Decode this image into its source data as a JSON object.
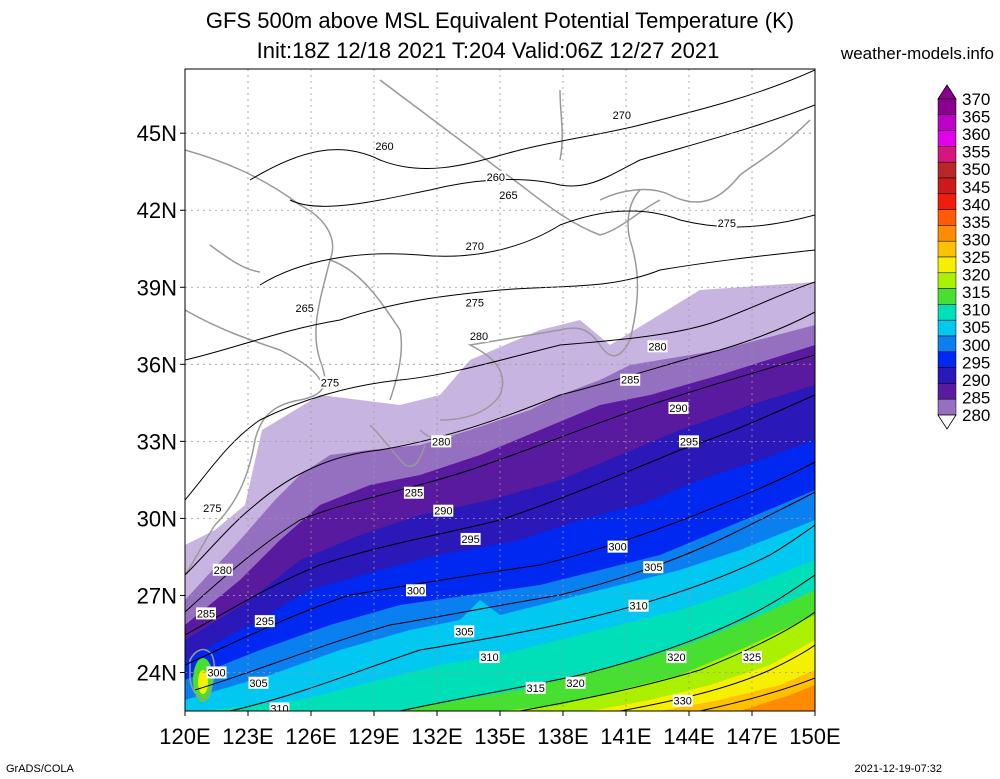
{
  "title": {
    "line1": "GFS 500m above MSL Equivalent Potential Temperature (K)",
    "line2": "Init:18Z 12/18 2021 T:204 Valid:06Z 12/27 2021",
    "site": "weather-models.info"
  },
  "footer": {
    "left": "GrADS/COLA",
    "right": "2021-12-19-07:32"
  },
  "axes": {
    "lon_labels": [
      "120E",
      "123E",
      "126E",
      "129E",
      "132E",
      "135E",
      "138E",
      "141E",
      "144E",
      "147E",
      "150E"
    ],
    "lat_labels": [
      "24N",
      "27N",
      "30N",
      "33N",
      "36N",
      "39N",
      "42N",
      "45N"
    ],
    "lon_range": [
      120,
      150
    ],
    "lat_range": [
      22.5,
      47.5
    ],
    "grid": "dotted"
  },
  "colorbar": {
    "levels": [
      "370",
      "365",
      "360",
      "355",
      "350",
      "345",
      "340",
      "335",
      "330",
      "325",
      "320",
      "315",
      "310",
      "305",
      "300",
      "295",
      "290",
      "285",
      "280"
    ],
    "colors": [
      "#8a008f",
      "#bf00c8",
      "#e400e8",
      "#d8157f",
      "#b82828",
      "#cc1a1a",
      "#f01c0c",
      "#ff5a00",
      "#ff8c00",
      "#ffc000",
      "#f5f000",
      "#aaf000",
      "#48e030",
      "#00e0b8",
      "#00c8f0",
      "#0a80f0",
      "#0028f0",
      "#2a18b8",
      "#5a1aa0",
      "#9670c0",
      "#c8b4e0"
    ]
  },
  "contour_labels": [
    {
      "lon": 129.5,
      "lat": 44.5,
      "text": "260"
    },
    {
      "lon": 134.8,
      "lat": 43.3,
      "text": "260"
    },
    {
      "lon": 135.4,
      "lat": 42.6,
      "text": "265"
    },
    {
      "lon": 125.7,
      "lat": 38.2,
      "text": "265"
    },
    {
      "lon": 140.8,
      "lat": 45.7,
      "text": "270"
    },
    {
      "lon": 133.8,
      "lat": 40.6,
      "text": "270"
    },
    {
      "lon": 145.8,
      "lat": 41.5,
      "text": "275"
    },
    {
      "lon": 133.8,
      "lat": 38.4,
      "text": "275"
    },
    {
      "lon": 126.9,
      "lat": 35.3,
      "text": "275"
    },
    {
      "lon": 121.3,
      "lat": 30.4,
      "text": "275"
    },
    {
      "lon": 134.0,
      "lat": 37.1,
      "text": "280"
    },
    {
      "lon": 142.5,
      "lat": 36.7,
      "text": "280"
    },
    {
      "lon": 132.2,
      "lat": 33.0,
      "text": "280"
    },
    {
      "lon": 121.8,
      "lat": 28.0,
      "text": "280"
    },
    {
      "lon": 141.2,
      "lat": 35.4,
      "text": "285"
    },
    {
      "lon": 130.9,
      "lat": 31.0,
      "text": "285"
    },
    {
      "lon": 121.0,
      "lat": 26.3,
      "text": "285"
    },
    {
      "lon": 143.5,
      "lat": 34.3,
      "text": "290"
    },
    {
      "lon": 132.3,
      "lat": 30.3,
      "text": "290"
    },
    {
      "lon": 144.0,
      "lat": 33.0,
      "text": "295"
    },
    {
      "lon": 133.6,
      "lat": 29.2,
      "text": "295"
    },
    {
      "lon": 123.8,
      "lat": 26.0,
      "text": "295"
    },
    {
      "lon": 140.6,
      "lat": 28.9,
      "text": "300"
    },
    {
      "lon": 131.0,
      "lat": 27.2,
      "text": "300"
    },
    {
      "lon": 121.5,
      "lat": 24.0,
      "text": "300"
    },
    {
      "lon": 142.3,
      "lat": 28.1,
      "text": "305"
    },
    {
      "lon": 133.3,
      "lat": 25.6,
      "text": "305"
    },
    {
      "lon": 123.5,
      "lat": 23.6,
      "text": "305"
    },
    {
      "lon": 141.6,
      "lat": 26.6,
      "text": "310"
    },
    {
      "lon": 134.5,
      "lat": 24.6,
      "text": "310"
    },
    {
      "lon": 124.5,
      "lat": 22.6,
      "text": "310"
    },
    {
      "lon": 136.7,
      "lat": 23.4,
      "text": "315"
    },
    {
      "lon": 143.4,
      "lat": 24.6,
      "text": "320"
    },
    {
      "lon": 138.6,
      "lat": 23.6,
      "text": "320"
    },
    {
      "lon": 147.0,
      "lat": 24.6,
      "text": "325"
    },
    {
      "lon": 143.7,
      "lat": 22.9,
      "text": "330"
    }
  ]
}
